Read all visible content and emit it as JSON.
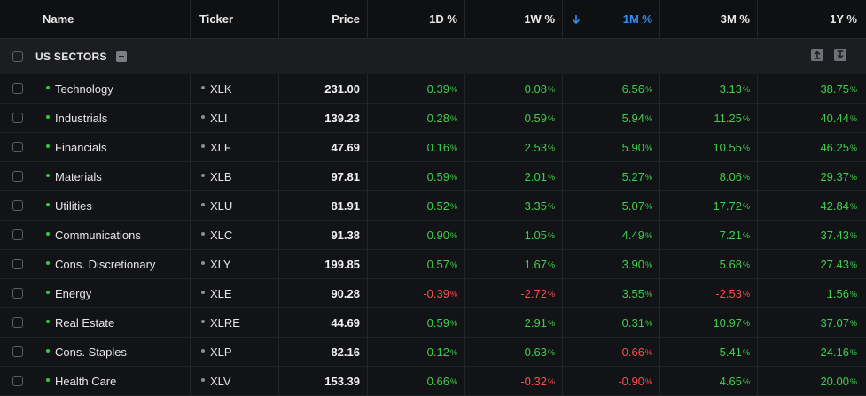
{
  "columns": {
    "name": "Name",
    "ticker": "Ticker",
    "price": "Price",
    "d1": "1D %",
    "w1": "1W %",
    "m1": "1M %",
    "m3": "3M %",
    "y1": "1Y %",
    "sort_icon": "arrow-down-icon"
  },
  "group": {
    "label": "US SECTORS"
  },
  "colors": {
    "positive": "#3ecf4c",
    "negative": "#ff4d4d",
    "sorted": "#2f8ff5"
  },
  "rows": [
    {
      "name": "Technology",
      "ticker": "XLK",
      "price": "231.00",
      "d1": "0.39",
      "w1": "0.08",
      "m1": "6.56",
      "m3": "3.13",
      "y1": "38.75"
    },
    {
      "name": "Industrials",
      "ticker": "XLI",
      "price": "139.23",
      "d1": "0.28",
      "w1": "0.59",
      "m1": "5.94",
      "m3": "11.25",
      "y1": "40.44"
    },
    {
      "name": "Financials",
      "ticker": "XLF",
      "price": "47.69",
      "d1": "0.16",
      "w1": "2.53",
      "m1": "5.90",
      "m3": "10.55",
      "y1": "46.25"
    },
    {
      "name": "Materials",
      "ticker": "XLB",
      "price": "97.81",
      "d1": "0.59",
      "w1": "2.01",
      "m1": "5.27",
      "m3": "8.06",
      "y1": "29.37"
    },
    {
      "name": "Utilities",
      "ticker": "XLU",
      "price": "81.91",
      "d1": "0.52",
      "w1": "3.35",
      "m1": "5.07",
      "m3": "17.72",
      "y1": "42.84"
    },
    {
      "name": "Communications",
      "ticker": "XLC",
      "price": "91.38",
      "d1": "0.90",
      "w1": "1.05",
      "m1": "4.49",
      "m3": "7.21",
      "y1": "37.43"
    },
    {
      "name": "Cons. Discretionary",
      "ticker": "XLY",
      "price": "199.85",
      "d1": "0.57",
      "w1": "1.67",
      "m1": "3.90",
      "m3": "5.68",
      "y1": "27.43"
    },
    {
      "name": "Energy",
      "ticker": "XLE",
      "price": "90.28",
      "d1": "-0.39",
      "w1": "-2.72",
      "m1": "3.55",
      "m3": "-2.53",
      "y1": "1.56"
    },
    {
      "name": "Real Estate",
      "ticker": "XLRE",
      "price": "44.69",
      "d1": "0.59",
      "w1": "2.91",
      "m1": "0.31",
      "m3": "10.97",
      "y1": "37.07"
    },
    {
      "name": "Cons. Staples",
      "ticker": "XLP",
      "price": "82.16",
      "d1": "0.12",
      "w1": "0.63",
      "m1": "-0.66",
      "m3": "5.41",
      "y1": "24.16"
    },
    {
      "name": "Health Care",
      "ticker": "XLV",
      "price": "153.39",
      "d1": "0.66",
      "w1": "-0.32",
      "m1": "-0.90",
      "m3": "4.65",
      "y1": "20.00"
    }
  ]
}
